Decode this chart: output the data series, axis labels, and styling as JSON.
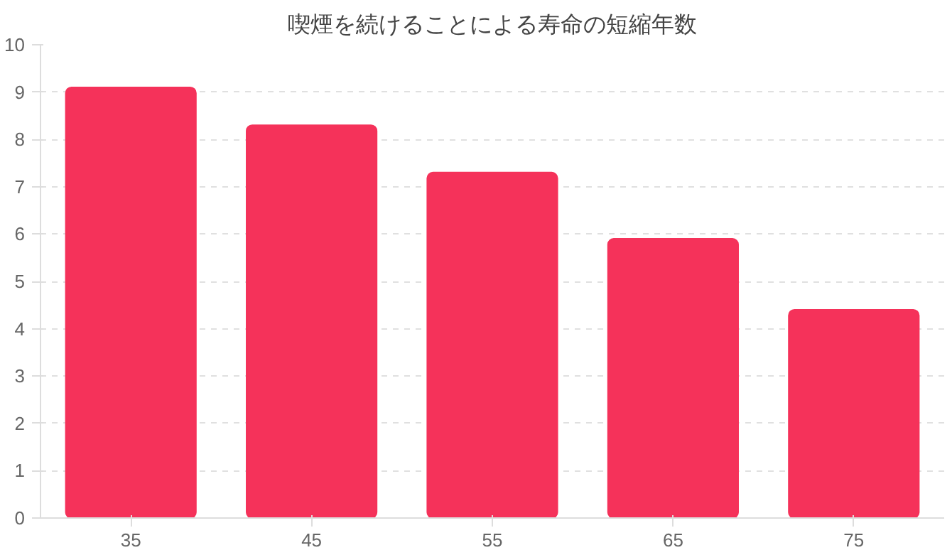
{
  "chart_data": {
    "type": "bar",
    "title": "喫煙を続けることによる寿命の短縮年数",
    "categories": [
      "35",
      "45",
      "55",
      "65",
      "75"
    ],
    "values": [
      9.1,
      8.3,
      7.3,
      5.9,
      4.4
    ],
    "color": "#f5325a",
    "ylim": [
      0,
      10
    ],
    "yticks": [
      0,
      1,
      2,
      3,
      4,
      5,
      6,
      7,
      8,
      9,
      10
    ],
    "grid": "y"
  }
}
